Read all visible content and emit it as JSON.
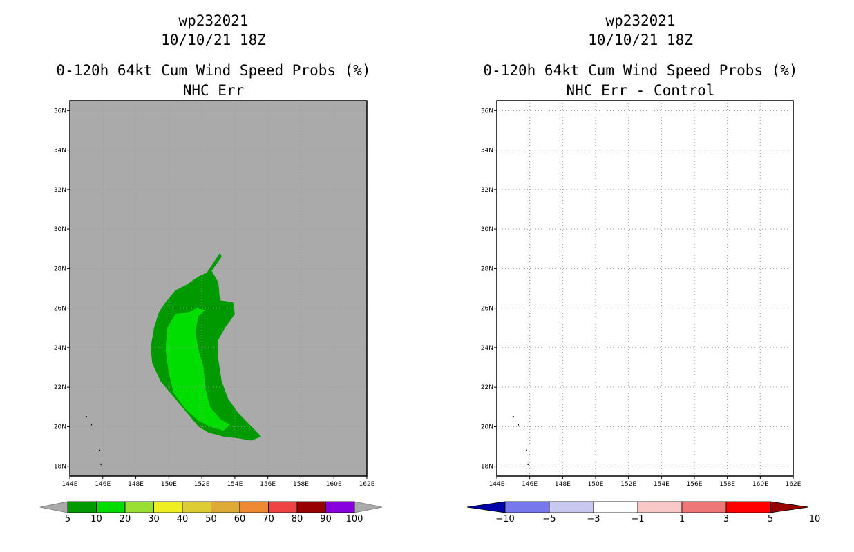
{
  "chart_data": [
    {
      "type": "heatmap",
      "storm_id": "wp232021",
      "date": "10/10/21 18Z",
      "title": "0-120h 64kt Cum Wind Speed Probs (%)",
      "subtitle": "NHC Err",
      "x_ticks": [
        "144E",
        "146E",
        "148E",
        "150E",
        "152E",
        "154E",
        "156E",
        "158E",
        "160E",
        "162E"
      ],
      "y_ticks": [
        "18N",
        "20N",
        "22N",
        "24N",
        "26N",
        "28N",
        "30N",
        "32N",
        "34N",
        "36N"
      ],
      "xlim": [
        144,
        162
      ],
      "ylim": [
        17.5,
        36.5
      ],
      "grid": true,
      "background_color": "#aaaaaa",
      "contours": [
        {
          "level": "5-10",
          "color": "#009900",
          "polygon": [
            [
              153.1,
              28.8
            ],
            [
              152.7,
              28.3
            ],
            [
              152.3,
              27.8
            ],
            [
              151.8,
              27.6
            ],
            [
              151.1,
              27.2
            ],
            [
              150.4,
              26.9
            ],
            [
              149.8,
              26.3
            ],
            [
              149.4,
              25.8
            ],
            [
              149.1,
              25.0
            ],
            [
              148.9,
              24.0
            ],
            [
              149.0,
              23.2
            ],
            [
              149.5,
              22.3
            ],
            [
              150.2,
              21.6
            ],
            [
              151.0,
              20.8
            ],
            [
              151.8,
              20.0
            ],
            [
              152.4,
              19.7
            ],
            [
              153.3,
              19.5
            ],
            [
              154.3,
              19.4
            ],
            [
              155.0,
              19.3
            ],
            [
              155.6,
              19.5
            ],
            [
              154.9,
              20.1
            ],
            [
              154.2,
              20.7
            ],
            [
              153.6,
              21.4
            ],
            [
              153.2,
              22.3
            ],
            [
              153.0,
              23.4
            ],
            [
              153.0,
              24.4
            ],
            [
              153.4,
              25.0
            ],
            [
              154.0,
              25.7
            ],
            [
              153.9,
              26.3
            ],
            [
              153.1,
              26.4
            ],
            [
              153.0,
              27.3
            ],
            [
              152.6,
              27.9
            ],
            [
              153.2,
              28.6
            ]
          ]
        },
        {
          "level": "10-20",
          "color": "#00dd00",
          "polygon": [
            [
              152.2,
              25.9
            ],
            [
              151.8,
              25.6
            ],
            [
              151.6,
              24.8
            ],
            [
              151.8,
              23.9
            ],
            [
              152.1,
              23.0
            ],
            [
              152.2,
              22.0
            ],
            [
              152.5,
              21.0
            ],
            [
              153.1,
              20.4
            ],
            [
              153.7,
              20.1
            ],
            [
              153.3,
              19.8
            ],
            [
              152.5,
              20.0
            ],
            [
              151.8,
              20.3
            ],
            [
              151.0,
              20.9
            ],
            [
              150.3,
              21.7
            ],
            [
              150.0,
              22.7
            ],
            [
              149.8,
              23.9
            ],
            [
              149.9,
              25.0
            ],
            [
              150.4,
              25.7
            ],
            [
              151.2,
              25.8
            ],
            [
              151.7,
              26.0
            ]
          ]
        }
      ],
      "islands": [
        [
          145.0,
          20.5
        ],
        [
          145.3,
          20.1
        ],
        [
          145.8,
          18.8
        ],
        [
          145.9,
          18.1
        ]
      ],
      "colorbar": {
        "labels": [
          "5",
          "10",
          "20",
          "30",
          "40",
          "50",
          "60",
          "70",
          "80",
          "90",
          "100"
        ],
        "colors": [
          "#009900",
          "#00dd00",
          "#99e033",
          "#eeee22",
          "#ddcc33",
          "#ddaa33",
          "#ee8833",
          "#ee4444",
          "#990000",
          "#8800dd"
        ]
      }
    },
    {
      "type": "heatmap",
      "storm_id": "wp232021",
      "date": "10/10/21 18Z",
      "title": "0-120h 64kt Cum Wind Speed Probs (%)",
      "subtitle": "NHC Err - Control",
      "x_ticks": [
        "144E",
        "146E",
        "148E",
        "150E",
        "152E",
        "154E",
        "156E",
        "158E",
        "160E",
        "162E"
      ],
      "y_ticks": [
        "18N",
        "20N",
        "22N",
        "24N",
        "26N",
        "28N",
        "30N",
        "32N",
        "34N",
        "36N"
      ],
      "xlim": [
        144,
        162
      ],
      "ylim": [
        17.5,
        36.5
      ],
      "grid": true,
      "background_color": "#ffffff",
      "contours": [],
      "islands": [
        [
          145.0,
          20.5
        ],
        [
          145.3,
          20.1
        ],
        [
          145.8,
          18.8
        ],
        [
          145.9,
          18.1
        ]
      ],
      "colorbar": {
        "labels": [
          "-10",
          "-5",
          "-3",
          "-1",
          "1",
          "3",
          "5",
          "10"
        ],
        "colors": [
          "#0000aa",
          "#7777ee",
          "#c8c8f0",
          "#ffffff",
          "#f8c8c8",
          "#f07777",
          "#ff0000",
          "#990000"
        ]
      }
    }
  ]
}
